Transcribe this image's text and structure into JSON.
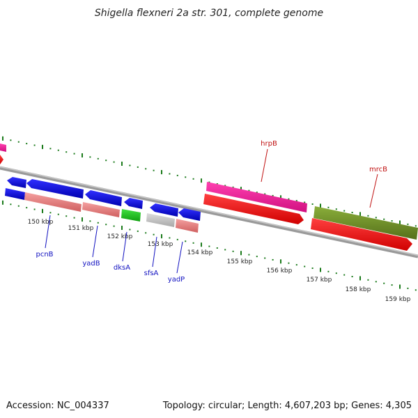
{
  "header": {
    "title": "Shigella flexneri 2a str. 301, complete genome"
  },
  "footer": {
    "accession": "Accession: NC_004337",
    "topology": "Topology: circular; Length: 4,607,203 bp; Genes: 4,305"
  },
  "scale_labels": [
    "150 kbp",
    "151 kbp",
    "152 kbp",
    "153 kbp",
    "154 kbp",
    "155 kbp",
    "156 kbp",
    "157 kbp",
    "158 kbp",
    "159 kbp"
  ],
  "gene_labels": {
    "pcnB": "pcnB",
    "yadB": "yadB",
    "dksA": "dksA",
    "sfsA": "sfsA",
    "yadP": "yadP",
    "hrpB": "hrpB",
    "mrcB": "mrcB"
  },
  "colors": {
    "forward_cds": "#ff1010",
    "forward_gene": "#ff1493",
    "reverse_cds": "#1010e0",
    "reverse_gene": "#f08080",
    "rna_gene": "#20c020",
    "other_gene": "#c8c8c8",
    "olive_gene": "#6b8e23",
    "tick_color": "#1a7a1a",
    "backbone": "#888888"
  }
}
